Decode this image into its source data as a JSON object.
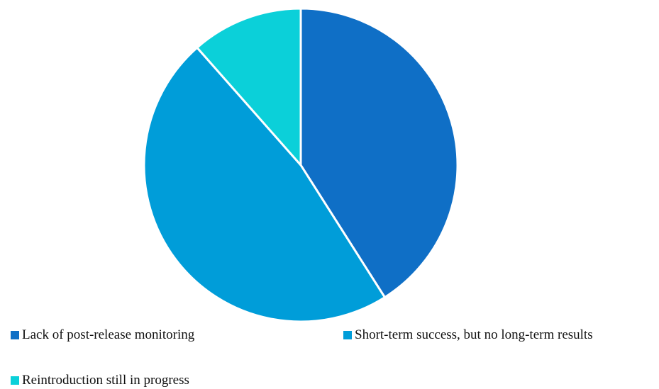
{
  "chart_data": {
    "type": "pie",
    "categories": [
      "Lack of post-release monitoring",
      "Short-term success, but no long-term results",
      "Reintroduction still in progress"
    ],
    "values": [
      41,
      47.5,
      11.5
    ],
    "colors": [
      "#0f6fc6",
      "#009dd9",
      "#0bd0d9"
    ],
    "title": "",
    "start_angle_deg": 0,
    "direction": "clockwise",
    "slice_border_color": "#ffffff",
    "legend_position": "bottom",
    "legend": {
      "items": [
        {
          "label": "Lack of post-release monitoring",
          "color": "#0f6fc6"
        },
        {
          "label": "Short-term success, but no long-term results",
          "color": "#009dd9"
        },
        {
          "label": "Reintroduction still in progress",
          "color": "#0bd0d9"
        }
      ]
    }
  }
}
